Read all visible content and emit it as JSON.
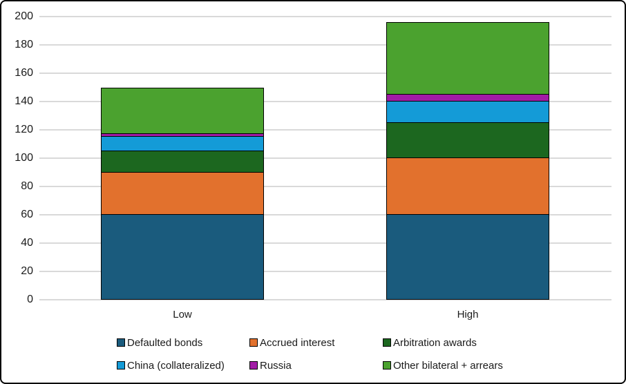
{
  "chart_data": {
    "type": "bar",
    "stacked": true,
    "title": "",
    "xlabel": "",
    "ylabel": "",
    "categories": [
      "Low",
      "High"
    ],
    "series": [
      {
        "name": "Defaulted bonds",
        "color": "#1a5b7d",
        "values": [
          60,
          60
        ]
      },
      {
        "name": "Accrued interest",
        "color": "#e2712d",
        "values": [
          30,
          40
        ]
      },
      {
        "name": "Arbitration awards",
        "color": "#1c671f",
        "values": [
          15,
          25
        ]
      },
      {
        "name": "China (collateralized)",
        "color": "#149bd7",
        "values": [
          10,
          15
        ]
      },
      {
        "name": "Russia",
        "color": "#a21ca6",
        "values": [
          2,
          5
        ]
      },
      {
        "name": "Other bilateral + arrears",
        "color": "#4ba22f",
        "values": [
          33,
          51
        ]
      }
    ],
    "totals": [
      150,
      196
    ],
    "ylim": [
      0,
      200
    ],
    "ytick_step": 20,
    "ytick_labels": [
      "0",
      "20",
      "40",
      "60",
      "80",
      "100",
      "120",
      "140",
      "160",
      "180",
      "200"
    ],
    "grid": true,
    "bar_edge_color": "#000000",
    "gridline_color": "#d9d9d9",
    "legend_position": "bottom",
    "legend_rows": [
      [
        0,
        1,
        2
      ],
      [
        3,
        4,
        5
      ]
    ]
  }
}
